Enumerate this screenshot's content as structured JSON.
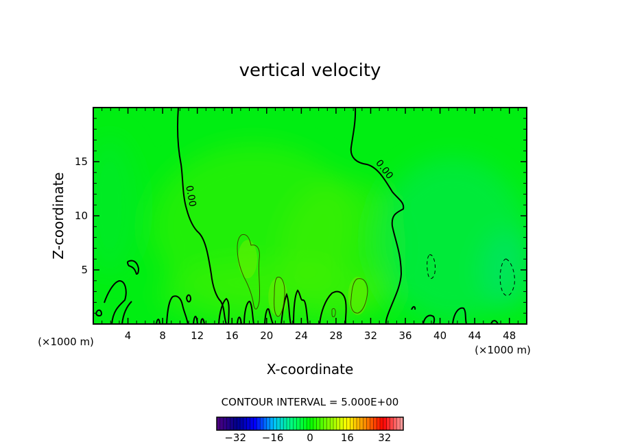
{
  "chart_data": {
    "type": "heatmap",
    "title": "vertical velocity",
    "xlabel": "X-coordinate",
    "ylabel": "Z-coordinate",
    "x_unit_label": "(×1000 m)",
    "xlim": [
      0,
      50
    ],
    "ylim": [
      0,
      20
    ],
    "x_ticks": [
      4,
      8,
      12,
      16,
      20,
      24,
      28,
      32,
      36,
      40,
      44,
      48
    ],
    "y_ticks": [
      5,
      10,
      15
    ],
    "field_value_range_approx": [
      -5,
      10
    ],
    "zero_contour_label": "0.00",
    "contour_interval_text": "CONTOUR INTERVAL = 5.000E+00",
    "colorbar": {
      "min": -40,
      "max": 40,
      "ticks": [
        -32,
        -16,
        0,
        16,
        32
      ],
      "colors": [
        "#4b0082",
        "#00008b",
        "#0000ff",
        "#00bfff",
        "#00ff7f",
        "#00ff00",
        "#7fff00",
        "#ffff00",
        "#ff8c00",
        "#ff0000",
        "#ff9999"
      ]
    },
    "positive_maxima": [
      {
        "x": 17.8,
        "z": 6.0,
        "value": 7
      },
      {
        "x": 21.3,
        "z": 2.5,
        "value": 7
      },
      {
        "x": 30.5,
        "z": 2.6,
        "value": 7
      }
    ],
    "negative_minima": [
      {
        "x": 39.2,
        "z": 5.0,
        "value": -6
      },
      {
        "x": 47.3,
        "z": 4.3,
        "value": -6
      }
    ],
    "grid": false
  }
}
